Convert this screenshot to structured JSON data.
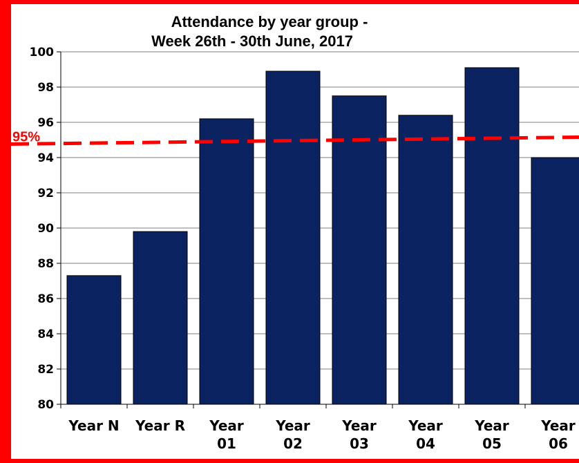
{
  "chart_data": {
    "type": "bar",
    "title_lines": [
      "Attendance by year group -",
      "Week 26th - 30th June, 2017"
    ],
    "categories": [
      [
        "Year N"
      ],
      [
        "Year R"
      ],
      [
        "Year",
        "01"
      ],
      [
        "Year",
        "02"
      ],
      [
        "Year",
        "03"
      ],
      [
        "Year",
        "04"
      ],
      [
        "Year",
        "05"
      ],
      [
        "Year",
        "06"
      ]
    ],
    "values": [
      87.3,
      89.8,
      96.2,
      98.9,
      97.5,
      96.4,
      99.1,
      94.0
    ],
    "ylim": [
      80,
      100
    ],
    "yticks": [
      "80",
      "82",
      "84",
      "86",
      "88",
      "90",
      "92",
      "94",
      "96",
      "98",
      "100"
    ],
    "grid": true,
    "target_line": {
      "label": "95%",
      "value": 95
    },
    "colors": {
      "bar": "#0b2461",
      "target": "#ff0000",
      "grid": "#7f7f7f",
      "frame": "#ff0000"
    }
  }
}
